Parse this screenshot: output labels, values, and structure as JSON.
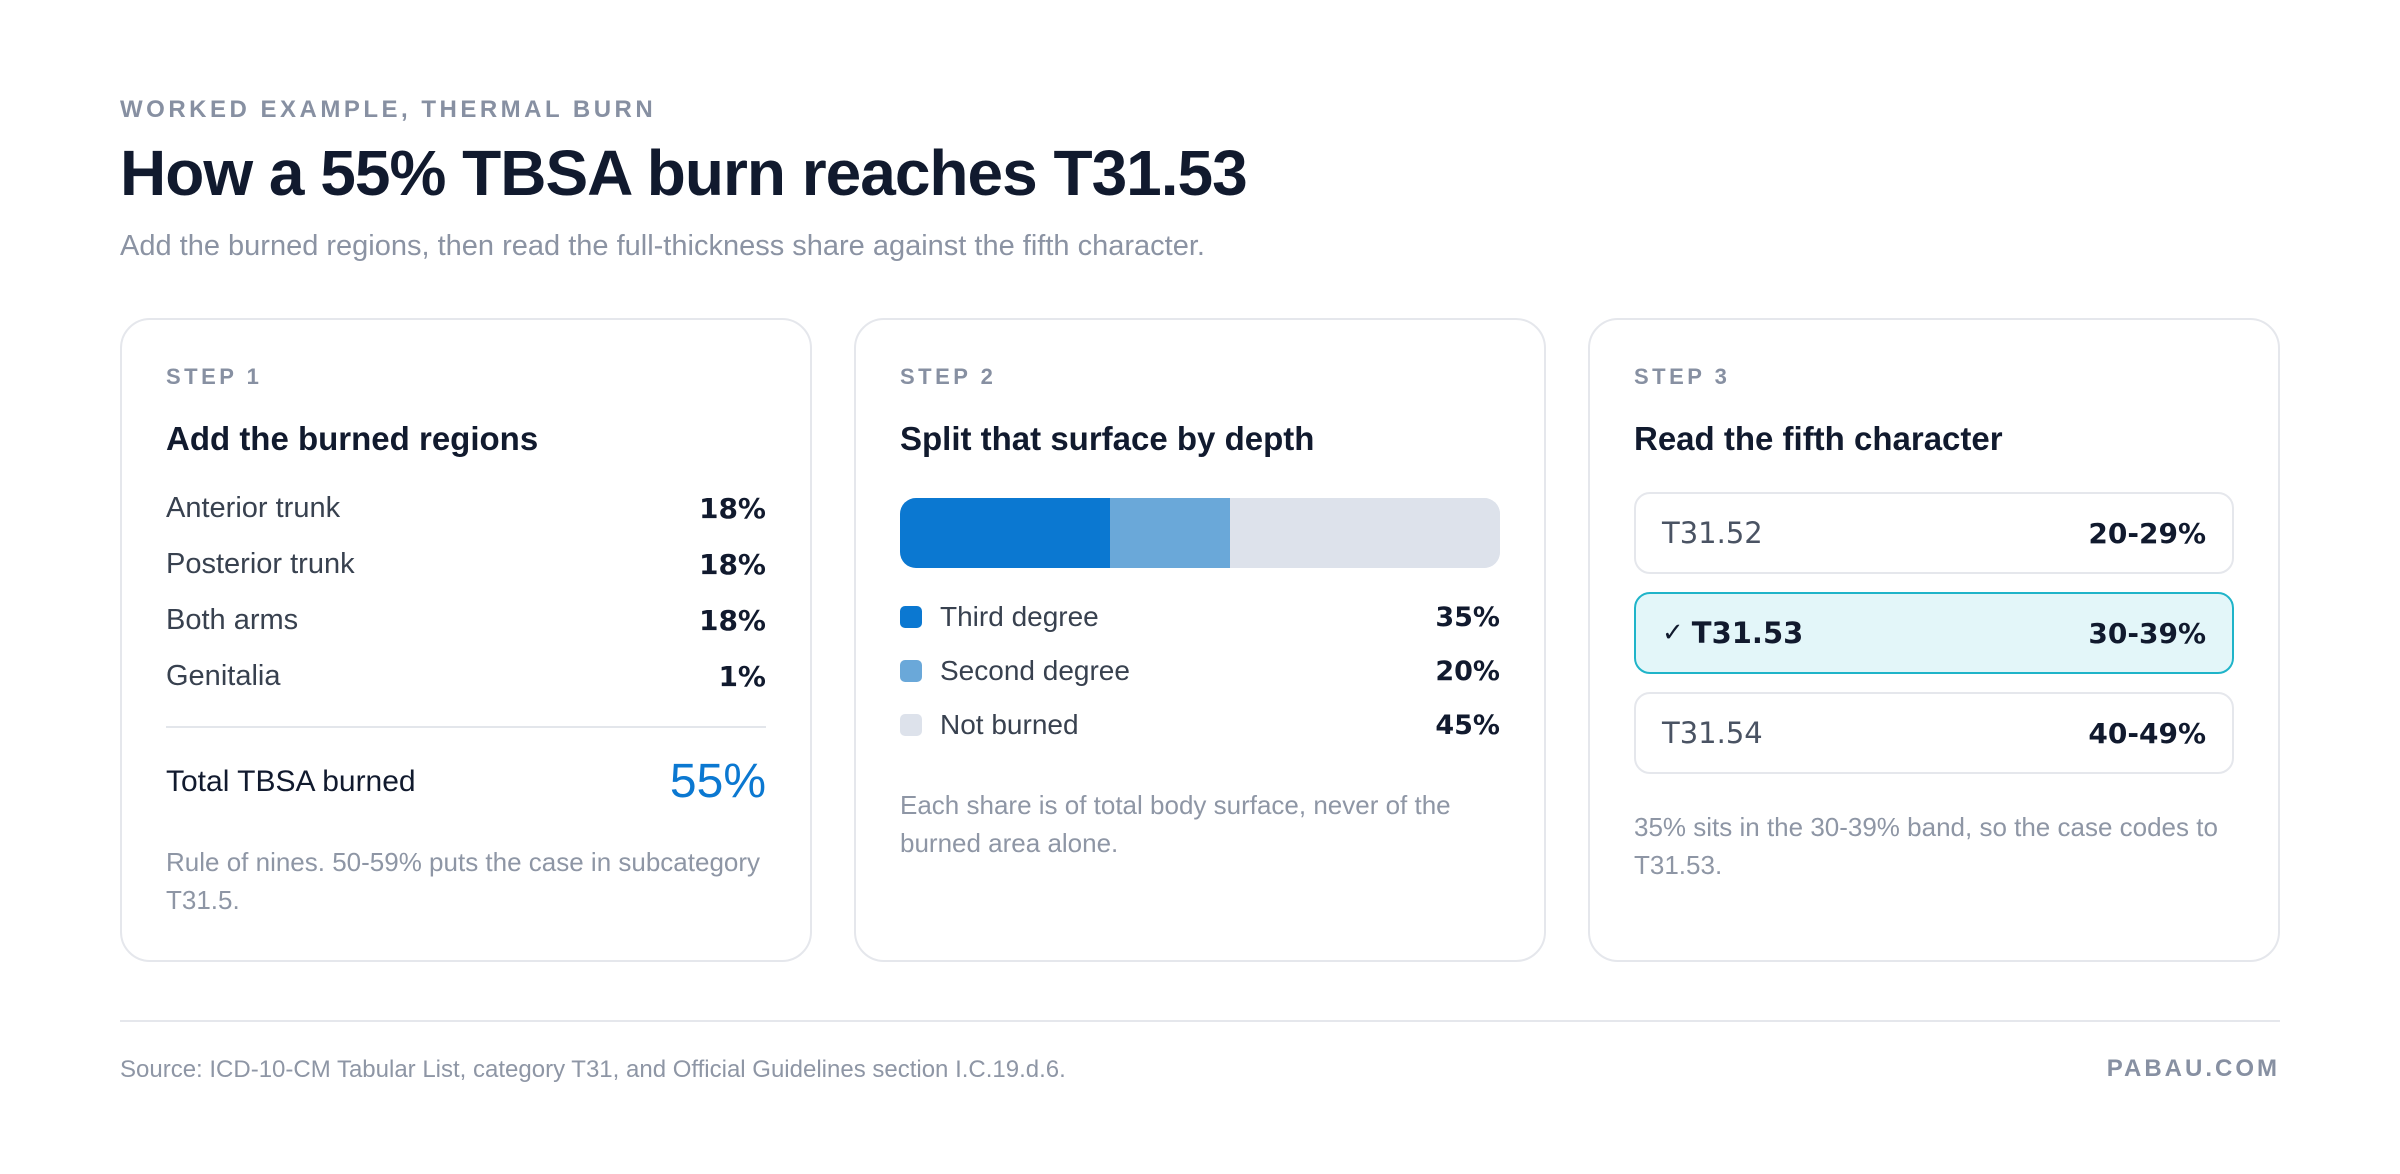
{
  "header": {
    "eyebrow": "WORKED EXAMPLE, THERMAL BURN",
    "title": "How a 55% TBSA burn reaches T31.53",
    "subtitle": "Add the burned regions, then read the full-thickness share against the fifth character."
  },
  "step1": {
    "step_label": "STEP 1",
    "title": "Add the burned regions",
    "regions": [
      {
        "name": "Anterior trunk",
        "value": "18%"
      },
      {
        "name": "Posterior trunk",
        "value": "18%"
      },
      {
        "name": "Both arms",
        "value": "18%"
      },
      {
        "name": "Genitalia",
        "value": "1%"
      }
    ],
    "total_label": "Total TBSA burned",
    "total_value": "55%",
    "note": "Rule of nines. 50-59% puts the case in subcategory T31.5."
  },
  "step2": {
    "step_label": "STEP 2",
    "title": "Split that surface by depth",
    "depths": [
      {
        "name": "Third degree",
        "value": "35%",
        "percent": 35,
        "color": "#0b78d1"
      },
      {
        "name": "Second degree",
        "value": "20%",
        "percent": 20,
        "color": "#6aa8d9"
      },
      {
        "name": "Not burned",
        "value": "45%",
        "percent": 45,
        "color": "#dde2eb"
      }
    ],
    "note": "Each share is of total body surface, never of the burned area alone."
  },
  "step3": {
    "step_label": "STEP 3",
    "title": "Read the fifth character",
    "codes": [
      {
        "code": "T31.52",
        "range": "20-29%",
        "selected": false
      },
      {
        "code": "T31.53",
        "range": "30-39%",
        "selected": true
      },
      {
        "code": "T31.54",
        "range": "40-49%",
        "selected": false
      }
    ],
    "check_icon": "✓",
    "note": "35% sits in the 30-39% band, so the case codes to T31.53."
  },
  "footer": {
    "source": "Source: ICD-10-CM Tabular List, category T31, and Official Guidelines section I.C.19.d.6.",
    "brand": "PABAU.COM"
  },
  "colors": {
    "accent": "#0b78d1",
    "selected_bg": "#e3f6f9",
    "selected_border": "#1fb4c9"
  }
}
